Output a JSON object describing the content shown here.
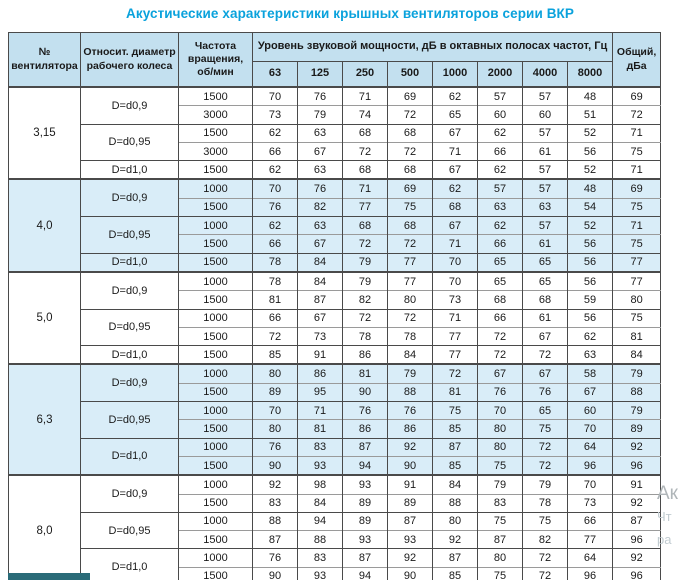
{
  "title": "Акустические характеристики крышных вентиляторов серии ВКР",
  "colors": {
    "title_accent": "#0aa2dc",
    "header_bg": "#c3e0ef",
    "shaded_section_bg": "#d9edf8",
    "border_dark": "#4a4a4a",
    "border_light": "#9a9a9a",
    "teal_bar": "#2a6b78"
  },
  "header": {
    "col_fan": "№ вентилятора",
    "col_diameter": "Относит. диаметр рабочего колеса",
    "col_rpm": "Частота вращения, об/мин",
    "span_title": "Уровень звуковой мощности, дБ в октавных полосах частот, Гц",
    "freqs": [
      "63",
      "125",
      "250",
      "500",
      "1000",
      "2000",
      "4000",
      "8000"
    ],
    "col_total": "Общий, дБа"
  },
  "sections": [
    {
      "fan": "3,15",
      "shaded": false,
      "groups": [
        {
          "diameter": "D=d0,9",
          "rows": [
            {
              "rpm": "1500",
              "levels": [
                70,
                76,
                71,
                69,
                62,
                57,
                57,
                48
              ],
              "total": 69
            },
            {
              "rpm": "3000",
              "levels": [
                73,
                79,
                74,
                72,
                65,
                60,
                60,
                51
              ],
              "total": 72
            }
          ]
        },
        {
          "diameter": "D=d0,95",
          "rows": [
            {
              "rpm": "1500",
              "levels": [
                62,
                63,
                68,
                68,
                67,
                62,
                57,
                52
              ],
              "total": 71
            },
            {
              "rpm": "3000",
              "levels": [
                66,
                67,
                72,
                72,
                71,
                66,
                61,
                56
              ],
              "total": 75
            }
          ]
        },
        {
          "diameter": "D=d1,0",
          "rows": [
            {
              "rpm": "1500",
              "levels": [
                62,
                63,
                68,
                68,
                67,
                62,
                57,
                52
              ],
              "total": 71
            }
          ]
        }
      ]
    },
    {
      "fan": "4,0",
      "shaded": true,
      "groups": [
        {
          "diameter": "D=d0,9",
          "rows": [
            {
              "rpm": "1000",
              "levels": [
                70,
                76,
                71,
                69,
                62,
                57,
                57,
                48
              ],
              "total": 69
            },
            {
              "rpm": "1500",
              "levels": [
                76,
                82,
                77,
                75,
                68,
                63,
                63,
                54
              ],
              "total": 75
            }
          ]
        },
        {
          "diameter": "D=d0,95",
          "rows": [
            {
              "rpm": "1000",
              "levels": [
                62,
                63,
                68,
                68,
                67,
                62,
                57,
                52
              ],
              "total": 71
            },
            {
              "rpm": "1500",
              "levels": [
                66,
                67,
                72,
                72,
                71,
                66,
                61,
                56
              ],
              "total": 75
            }
          ]
        },
        {
          "diameter": "D=d1,0",
          "rows": [
            {
              "rpm": "1500",
              "levels": [
                78,
                84,
                79,
                77,
                70,
                65,
                65,
                56
              ],
              "total": 77
            }
          ]
        }
      ]
    },
    {
      "fan": "5,0",
      "shaded": false,
      "groups": [
        {
          "diameter": "D=d0,9",
          "rows": [
            {
              "rpm": "1000",
              "levels": [
                78,
                84,
                79,
                77,
                70,
                65,
                65,
                56
              ],
              "total": 77
            },
            {
              "rpm": "1500",
              "levels": [
                81,
                87,
                82,
                80,
                73,
                68,
                68,
                59
              ],
              "total": 80
            }
          ]
        },
        {
          "diameter": "D=d0,95",
          "rows": [
            {
              "rpm": "1000",
              "levels": [
                66,
                67,
                72,
                72,
                71,
                66,
                61,
                56
              ],
              "total": 75
            },
            {
              "rpm": "1500",
              "levels": [
                72,
                73,
                78,
                78,
                77,
                72,
                67,
                62
              ],
              "total": 81
            }
          ]
        },
        {
          "diameter": "D=d1,0",
          "rows": [
            {
              "rpm": "1500",
              "levels": [
                85,
                91,
                86,
                84,
                77,
                72,
                72,
                63
              ],
              "total": 84
            }
          ]
        }
      ]
    },
    {
      "fan": "6,3",
      "shaded": true,
      "groups": [
        {
          "diameter": "D=d0,9",
          "rows": [
            {
              "rpm": "1000",
              "levels": [
                80,
                86,
                81,
                79,
                72,
                67,
                67,
                58
              ],
              "total": 79
            },
            {
              "rpm": "1500",
              "levels": [
                89,
                95,
                90,
                88,
                81,
                76,
                76,
                67
              ],
              "total": 88
            }
          ]
        },
        {
          "diameter": "D=d0,95",
          "rows": [
            {
              "rpm": "1000",
              "levels": [
                70,
                71,
                76,
                76,
                75,
                70,
                65,
                60
              ],
              "total": 79
            },
            {
              "rpm": "1500",
              "levels": [
                80,
                81,
                86,
                86,
                85,
                80,
                75,
                70
              ],
              "total": 89
            }
          ]
        },
        {
          "diameter": "D=d1,0",
          "rows": [
            {
              "rpm": "1000",
              "levels": [
                76,
                83,
                87,
                92,
                87,
                80,
                72,
                64
              ],
              "total": 92
            },
            {
              "rpm": "1500",
              "levels": [
                90,
                93,
                94,
                90,
                85,
                75,
                72,
                96
              ],
              "total": 96
            }
          ]
        }
      ]
    },
    {
      "fan": "8,0",
      "shaded": false,
      "groups": [
        {
          "diameter": "D=d0,9",
          "rows": [
            {
              "rpm": "1000",
              "levels": [
                92,
                98,
                93,
                91,
                84,
                79,
                79,
                70
              ],
              "total": 91
            },
            {
              "rpm": "1500",
              "levels": [
                83,
                84,
                89,
                89,
                88,
                83,
                78,
                73
              ],
              "total": 92
            }
          ]
        },
        {
          "diameter": "D=d0,95",
          "rows": [
            {
              "rpm": "1000",
              "levels": [
                88,
                94,
                89,
                87,
                80,
                75,
                75,
                66
              ],
              "total": 87
            },
            {
              "rpm": "1500",
              "levels": [
                87,
                88,
                93,
                93,
                92,
                87,
                82,
                77
              ],
              "total": 96
            }
          ]
        },
        {
          "diameter": "D=d1,0",
          "rows": [
            {
              "rpm": "1000",
              "levels": [
                76,
                83,
                87,
                92,
                87,
                80,
                72,
                64
              ],
              "total": 92
            },
            {
              "rpm": "1500",
              "levels": [
                90,
                93,
                94,
                90,
                85,
                75,
                72,
                96
              ],
              "total": 96
            }
          ]
        }
      ]
    }
  ],
  "watermark": {
    "line1": "Ак",
    "line2": "Чт",
    "line3": "ра"
  }
}
